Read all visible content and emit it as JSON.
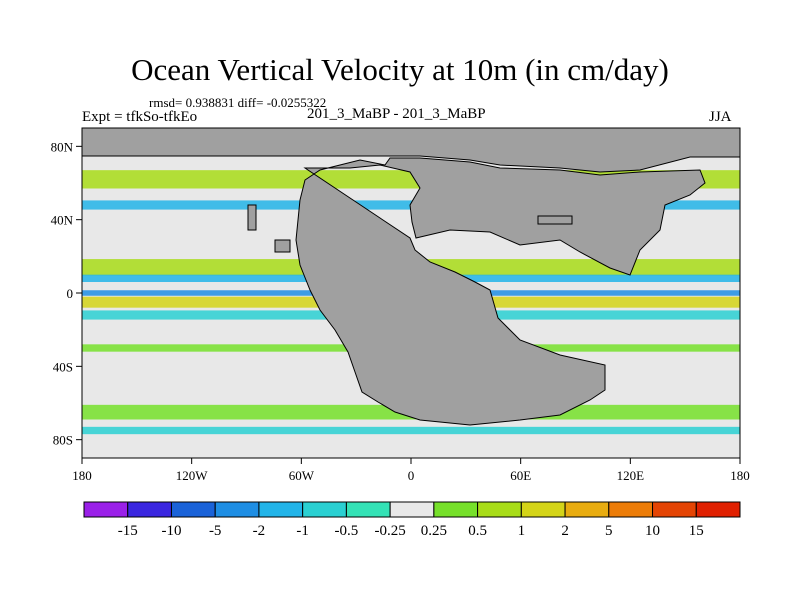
{
  "chart_data": {
    "type": "heatmap",
    "title": "Ocean Vertical Velocity at 10m (in cm/day)",
    "stats_text": "rmsd= 0.938831 diff= -0.0255322",
    "experiment": "Expt = tfkSo-tfkEo",
    "cases": "201_3_MaBP - 201_3_MaBP",
    "season": "JJA",
    "x_ticks": [
      {
        "value": -180,
        "label": "180"
      },
      {
        "value": -120,
        "label": "120W"
      },
      {
        "value": -60,
        "label": "60W"
      },
      {
        "value": 0,
        "label": "0"
      },
      {
        "value": 60,
        "label": "60E"
      },
      {
        "value": 120,
        "label": "120E"
      },
      {
        "value": 180,
        "label": "180"
      }
    ],
    "y_ticks": [
      {
        "value": 80,
        "label": "80N"
      },
      {
        "value": 40,
        "label": "40N"
      },
      {
        "value": 0,
        "label": "0"
      },
      {
        "value": -40,
        "label": "40S"
      },
      {
        "value": -80,
        "label": "80S"
      }
    ],
    "xlim": [
      -180,
      180
    ],
    "ylim": [
      -90,
      90
    ],
    "land_color": "#a0a0a0",
    "colorbar": {
      "labels": [
        "-15",
        "-10",
        "-5",
        "-2",
        "-1",
        "-0.5",
        "-0.25",
        "0.25",
        "0.5",
        "1",
        "2",
        "5",
        "10",
        "15"
      ],
      "colors": [
        "#9a20e8",
        "#3a26e0",
        "#1a62d8",
        "#1e8ee4",
        "#22b4e8",
        "#2ad0d2",
        "#34e2b6",
        "#e8e8e8",
        "#76e02a",
        "#a8dc18",
        "#d4d418",
        "#e8ac10",
        "#ec7c08",
        "#e44404",
        "#e02000"
      ]
    },
    "bands": [
      {
        "lat": 62,
        "width": 10,
        "class": 9
      },
      {
        "lat": 48,
        "width": 5,
        "class": 4
      },
      {
        "lat": 14,
        "width": 9,
        "class": 9
      },
      {
        "lat": 8,
        "width": 4,
        "class": 4
      },
      {
        "lat": 0,
        "width": 3,
        "class": 3
      },
      {
        "lat": -5,
        "width": 6,
        "class": 10
      },
      {
        "lat": -12,
        "width": 5,
        "class": 5
      },
      {
        "lat": -30,
        "width": 4,
        "class": 8
      },
      {
        "lat": -65,
        "width": 8,
        "class": 8
      },
      {
        "lat": -75,
        "width": 4,
        "class": 5
      }
    ]
  }
}
